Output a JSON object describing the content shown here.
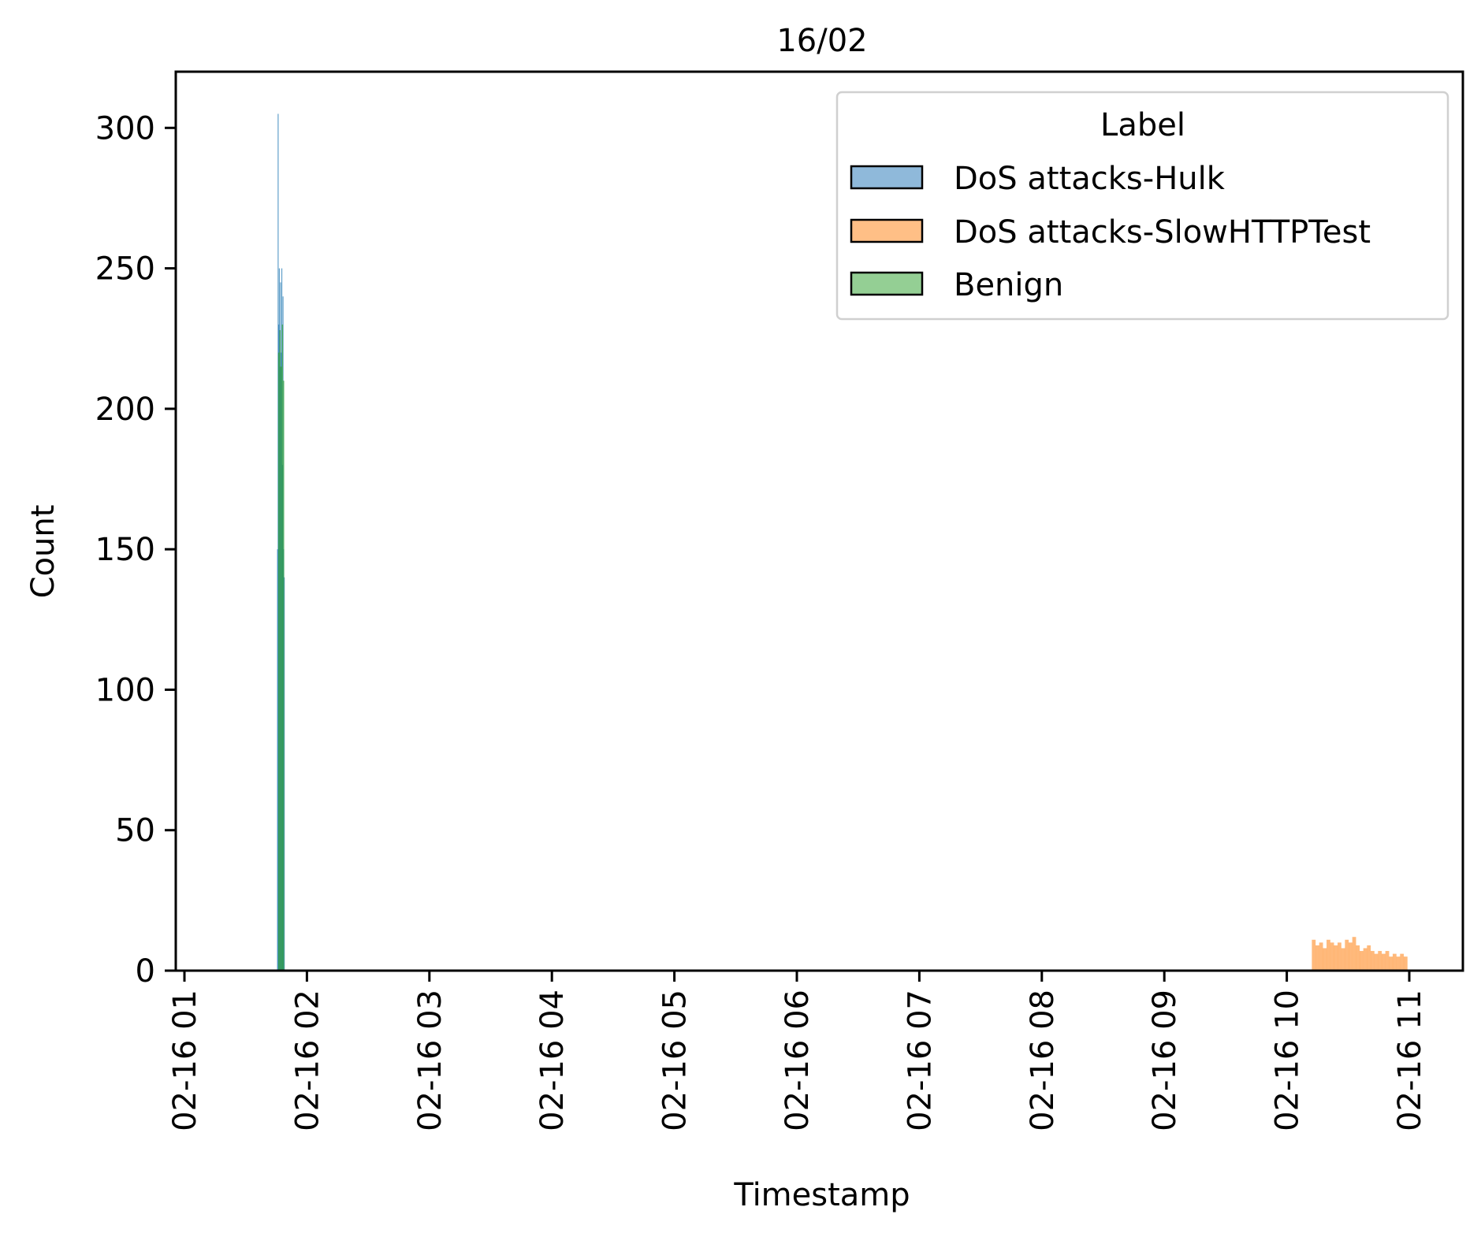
{
  "chart_data": {
    "type": "histogram",
    "title": "16/02",
    "xlabel": "Timestamp",
    "ylabel": "Count",
    "xlim": [
      "02-16 00:56",
      "02-16 11:28"
    ],
    "ylim": [
      0,
      320
    ],
    "x_ticks": [
      "02-16 01",
      "02-16 02",
      "02-16 03",
      "02-16 04",
      "02-16 05",
      "02-16 06",
      "02-16 07",
      "02-16 08",
      "02-16 09",
      "02-16 10",
      "02-16 11"
    ],
    "y_ticks": [
      "0",
      "50",
      "100",
      "150",
      "200",
      "250",
      "300"
    ],
    "y_tick_values": [
      0,
      50,
      100,
      150,
      200,
      250,
      300
    ],
    "grid": false,
    "legend": {
      "title": "Label",
      "position": "top-right",
      "entries": [
        "DoS attacks-Hulk",
        "DoS attacks-SlowHTTPTest",
        "Benign"
      ]
    },
    "series": [
      {
        "name": "DoS attacks-Hulk",
        "color": "#1f77b4",
        "fill_color": "#8fb9da",
        "x_unit": "hour of 02-16",
        "x": [
          1.76,
          1.765,
          1.77,
          1.775,
          1.78,
          1.785,
          1.79,
          1.795,
          1.8,
          1.805,
          1.81,
          1.815
        ],
        "values": [
          150,
          305,
          230,
          250,
          215,
          245,
          220,
          250,
          180,
          240,
          150,
          140
        ]
      },
      {
        "name": "DoS attacks-SlowHTTPTest",
        "color": "#ff7f0e",
        "fill_color": "#ffbf86",
        "x_unit": "hour of 02-16",
        "x": [
          10.22,
          10.25,
          10.28,
          10.31,
          10.34,
          10.37,
          10.4,
          10.43,
          10.46,
          10.49,
          10.52,
          10.55,
          10.58,
          10.61,
          10.64,
          10.67,
          10.7,
          10.73,
          10.76,
          10.79,
          10.82,
          10.85,
          10.88,
          10.91,
          10.94,
          10.97
        ],
        "values": [
          11,
          9,
          10,
          8,
          11,
          10,
          9,
          10,
          8,
          11,
          10,
          12,
          9,
          7,
          8,
          9,
          7,
          6,
          7,
          6,
          7,
          5,
          6,
          5,
          6,
          5
        ]
      },
      {
        "name": "Benign",
        "color": "#2ca02c",
        "fill_color": "#94cf94",
        "x_unit": "hour of 02-16",
        "x": [
          1.77,
          1.78,
          1.79,
          1.8,
          1.81
        ],
        "values": [
          220,
          228,
          215,
          230,
          210
        ]
      }
    ]
  }
}
